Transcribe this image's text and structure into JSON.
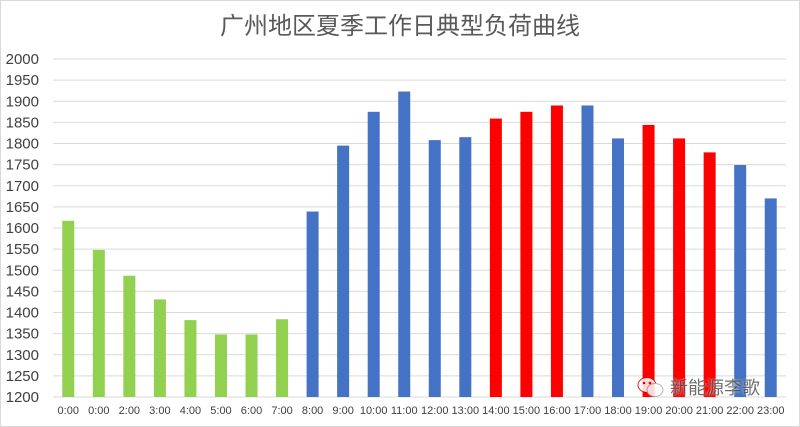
{
  "chart_data": {
    "type": "bar",
    "title": "广州地区夏季工作日典型负荷曲线",
    "xlabel": "",
    "ylabel": "",
    "ylim": [
      1200,
      2000
    ],
    "yticks": [
      1200,
      1250,
      1300,
      1350,
      1400,
      1450,
      1500,
      1550,
      1600,
      1650,
      1700,
      1750,
      1800,
      1850,
      1900,
      1950,
      2000
    ],
    "grid": true,
    "categories": [
      "0:00",
      "0:00",
      "2:00",
      "3:00",
      "4:00",
      "5:00",
      "6:00",
      "7:00",
      "8:00",
      "9:00",
      "10:00",
      "11:00",
      "12:00",
      "13:00",
      "14:00",
      "15:00",
      "16:00",
      "17:00",
      "18:00",
      "19:00",
      "20:00",
      "21:00",
      "22:00",
      "23:00"
    ],
    "values": [
      1617,
      1548,
      1487,
      1431,
      1382,
      1348,
      1348,
      1384,
      1639,
      1795,
      1875,
      1923,
      1808,
      1815,
      1859,
      1875,
      1890,
      1890,
      1812,
      1844,
      1812,
      1779,
      1749,
      1670
    ],
    "bar_colors": [
      "#92d050",
      "#92d050",
      "#92d050",
      "#92d050",
      "#92d050",
      "#92d050",
      "#92d050",
      "#92d050",
      "#4472c4",
      "#4472c4",
      "#4472c4",
      "#4472c4",
      "#4472c4",
      "#4472c4",
      "#ff0000",
      "#ff0000",
      "#ff0000",
      "#4472c4",
      "#4472c4",
      "#ff0000",
      "#ff0000",
      "#ff0000",
      "#4472c4",
      "#4472c4"
    ]
  },
  "watermark": {
    "text": "新能源李歌",
    "icon": "wechat-icon"
  }
}
